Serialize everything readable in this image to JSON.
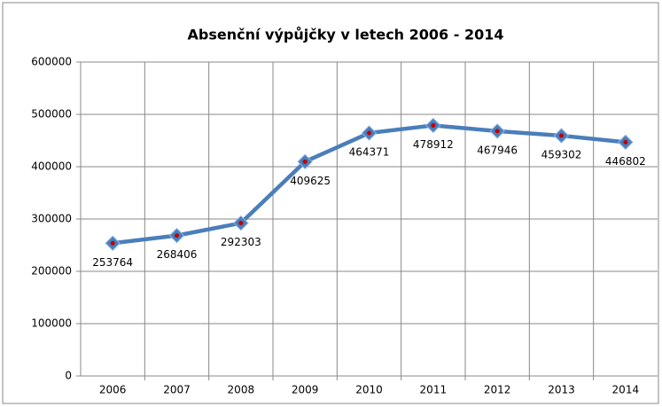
{
  "chart_data": {
    "type": "line",
    "title": "Absenční výpůjčky v letech 2006 - 2014",
    "categories": [
      "2006",
      "2007",
      "2008",
      "2009",
      "2010",
      "2011",
      "2012",
      "2013",
      "2014"
    ],
    "values": [
      253764,
      268406,
      292303,
      409625,
      464371,
      478912,
      467946,
      459302,
      446802
    ],
    "color": "#4a7ebb",
    "marker_color": "#c00000",
    "ylim": [
      0,
      600000
    ],
    "yticks": [
      0,
      100000,
      200000,
      300000,
      400000,
      500000,
      600000
    ],
    "grid": true
  }
}
